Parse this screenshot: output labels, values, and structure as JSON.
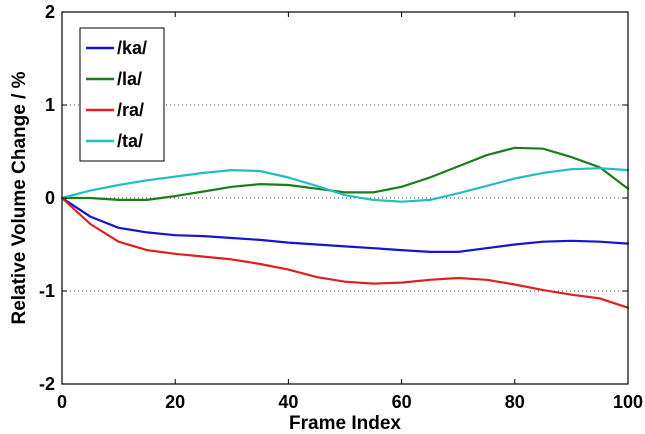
{
  "chart_data": {
    "type": "line",
    "xlabel": "Frame Index",
    "ylabel": "Relative Volume Change / %",
    "xlim": [
      0,
      100
    ],
    "ylim": [
      -2,
      2
    ],
    "x_ticks": [
      "0",
      "20",
      "40",
      "60",
      "80",
      "100"
    ],
    "y_ticks": [
      "-2",
      "-1",
      "0",
      "1",
      "2"
    ],
    "grid": "dotted horizontal lines at y = -1, 0, 1",
    "legend_position": "top-left",
    "x": [
      0,
      5,
      10,
      15,
      20,
      25,
      30,
      35,
      40,
      45,
      50,
      55,
      60,
      65,
      70,
      75,
      80,
      85,
      90,
      95,
      100
    ],
    "series": [
      {
        "name": "/ka/",
        "color": "#1414d2",
        "values": [
          0,
          -0.2,
          -0.32,
          -0.37,
          -0.4,
          -0.41,
          -0.43,
          -0.45,
          -0.48,
          -0.5,
          -0.52,
          -0.54,
          -0.56,
          -0.58,
          -0.58,
          -0.54,
          -0.5,
          -0.47,
          -0.46,
          -0.47,
          -0.49
        ]
      },
      {
        "name": "/la/",
        "color": "#1a7d1a",
        "values": [
          0,
          0,
          -0.02,
          -0.02,
          0.02,
          0.07,
          0.12,
          0.15,
          0.14,
          0.1,
          0.06,
          0.06,
          0.12,
          0.22,
          0.34,
          0.46,
          0.54,
          0.53,
          0.44,
          0.33,
          0.1
        ]
      },
      {
        "name": "/ra/",
        "color": "#e02020",
        "values": [
          0,
          -0.28,
          -0.47,
          -0.56,
          -0.6,
          -0.63,
          -0.66,
          -0.71,
          -0.77,
          -0.85,
          -0.9,
          -0.92,
          -0.91,
          -0.88,
          -0.86,
          -0.88,
          -0.93,
          -0.99,
          -1.04,
          -1.08,
          -1.18
        ]
      },
      {
        "name": "/ta/",
        "color": "#20c0c0",
        "values": [
          0,
          0.08,
          0.14,
          0.19,
          0.23,
          0.27,
          0.3,
          0.29,
          0.22,
          0.13,
          0.03,
          -0.02,
          -0.04,
          -0.02,
          0.05,
          0.13,
          0.21,
          0.27,
          0.31,
          0.32,
          0.3
        ]
      }
    ]
  }
}
